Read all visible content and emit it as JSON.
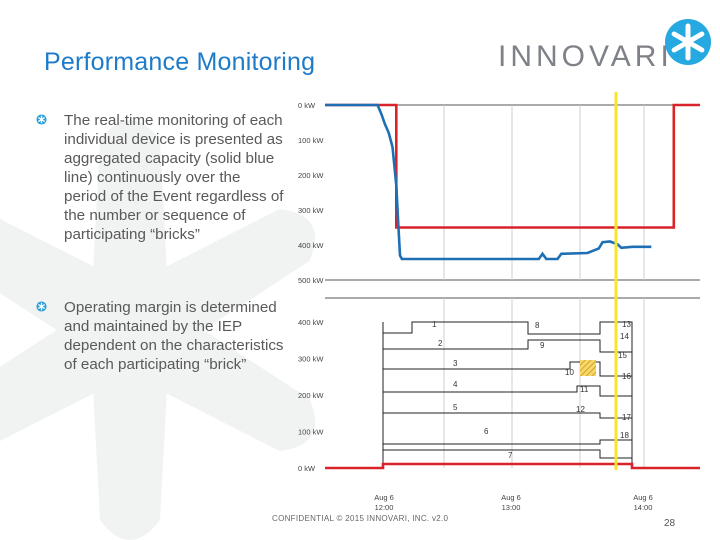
{
  "slide": {
    "title": "Performance Monitoring",
    "logo_text": "INNOVARI",
    "bullets": [
      "The real-time monitoring of each individual device is presented as aggregated capacity (solid blue line) continuously over the period of the Event regardless of the number or sequence of participating “bricks”",
      "Operating margin is determined and maintained by the IEP dependent on the characteristics of each participating “brick”"
    ],
    "footer": "CONFIDENTIAL © 2015 INNOVARI, INC. v2.0",
    "page_number": "28",
    "icons": {
      "bullet": "asterisk-bullet-icon",
      "logo": "innovari-asterisk-logo-icon",
      "background": "asterisk-watermark"
    },
    "colors": {
      "title": "#1e7bc9",
      "logo_mark": "#26a9e0",
      "capacity_line": "#1f6fb5",
      "target_line": "#d9232a",
      "time_marker": "#f5e52b",
      "grid": "#bfbfbf",
      "stack_lines": "#222222",
      "hatch": "#e2b42a"
    }
  },
  "chart_data": [
    {
      "type": "line",
      "title": "",
      "y_tick_labels": [
        "0 kW",
        "100 kW",
        "200 kW",
        "300 kW",
        "400 kW",
        "500 kW"
      ],
      "ylim": [
        0,
        500
      ],
      "y_inverted": true,
      "xlim": [
        0,
        100
      ],
      "series": [
        {
          "color": "#d9232a",
          "points": [
            [
              0,
              0
            ],
            [
              19,
              0
            ],
            [
              19,
              350
            ],
            [
              93,
              350
            ],
            [
              93,
              0
            ],
            [
              100,
              0
            ]
          ]
        },
        {
          "color": "#1f6fb5",
          "points": [
            [
              0,
              0
            ],
            [
              14,
              0
            ],
            [
              15,
              25
            ],
            [
              16,
              55
            ],
            [
              17,
              80
            ],
            [
              18,
              120
            ],
            [
              19,
              230
            ],
            [
              19.5,
              330
            ],
            [
              20,
              430
            ],
            [
              20.5,
              440
            ],
            [
              22,
              440
            ],
            [
              36,
              440
            ],
            [
              57,
              440
            ],
            [
              58,
              425
            ],
            [
              59,
              440
            ],
            [
              62,
              440
            ],
            [
              63,
              425
            ],
            [
              70,
              423
            ],
            [
              73,
              410
            ],
            [
              74,
              392
            ],
            [
              76,
              390
            ],
            [
              78,
              398
            ],
            [
              79,
              408
            ],
            [
              82,
              405
            ],
            [
              87,
              405
            ]
          ]
        }
      ],
      "vertical_marker_x": 87
    },
    {
      "type": "step-stack",
      "title": "",
      "y_tick_labels": [
        "400 kW",
        "300 kW",
        "200 kW",
        "100 kW",
        "0 kW"
      ],
      "ylim": [
        0,
        400
      ],
      "segment_labels": [
        "1",
        "2",
        "3",
        "4",
        "5",
        "6",
        "7",
        "8",
        "9",
        "10",
        "11",
        "12",
        "13",
        "14",
        "15",
        "16",
        "17",
        "18"
      ],
      "x_tick_labels": [
        {
          "date": "Aug 6",
          "time": "12:00"
        },
        {
          "date": "Aug 6",
          "time": "13:00"
        },
        {
          "date": "Aug 6",
          "time": "14:00"
        }
      ],
      "target_level": 0,
      "vertical_marker_x": 87
    }
  ]
}
